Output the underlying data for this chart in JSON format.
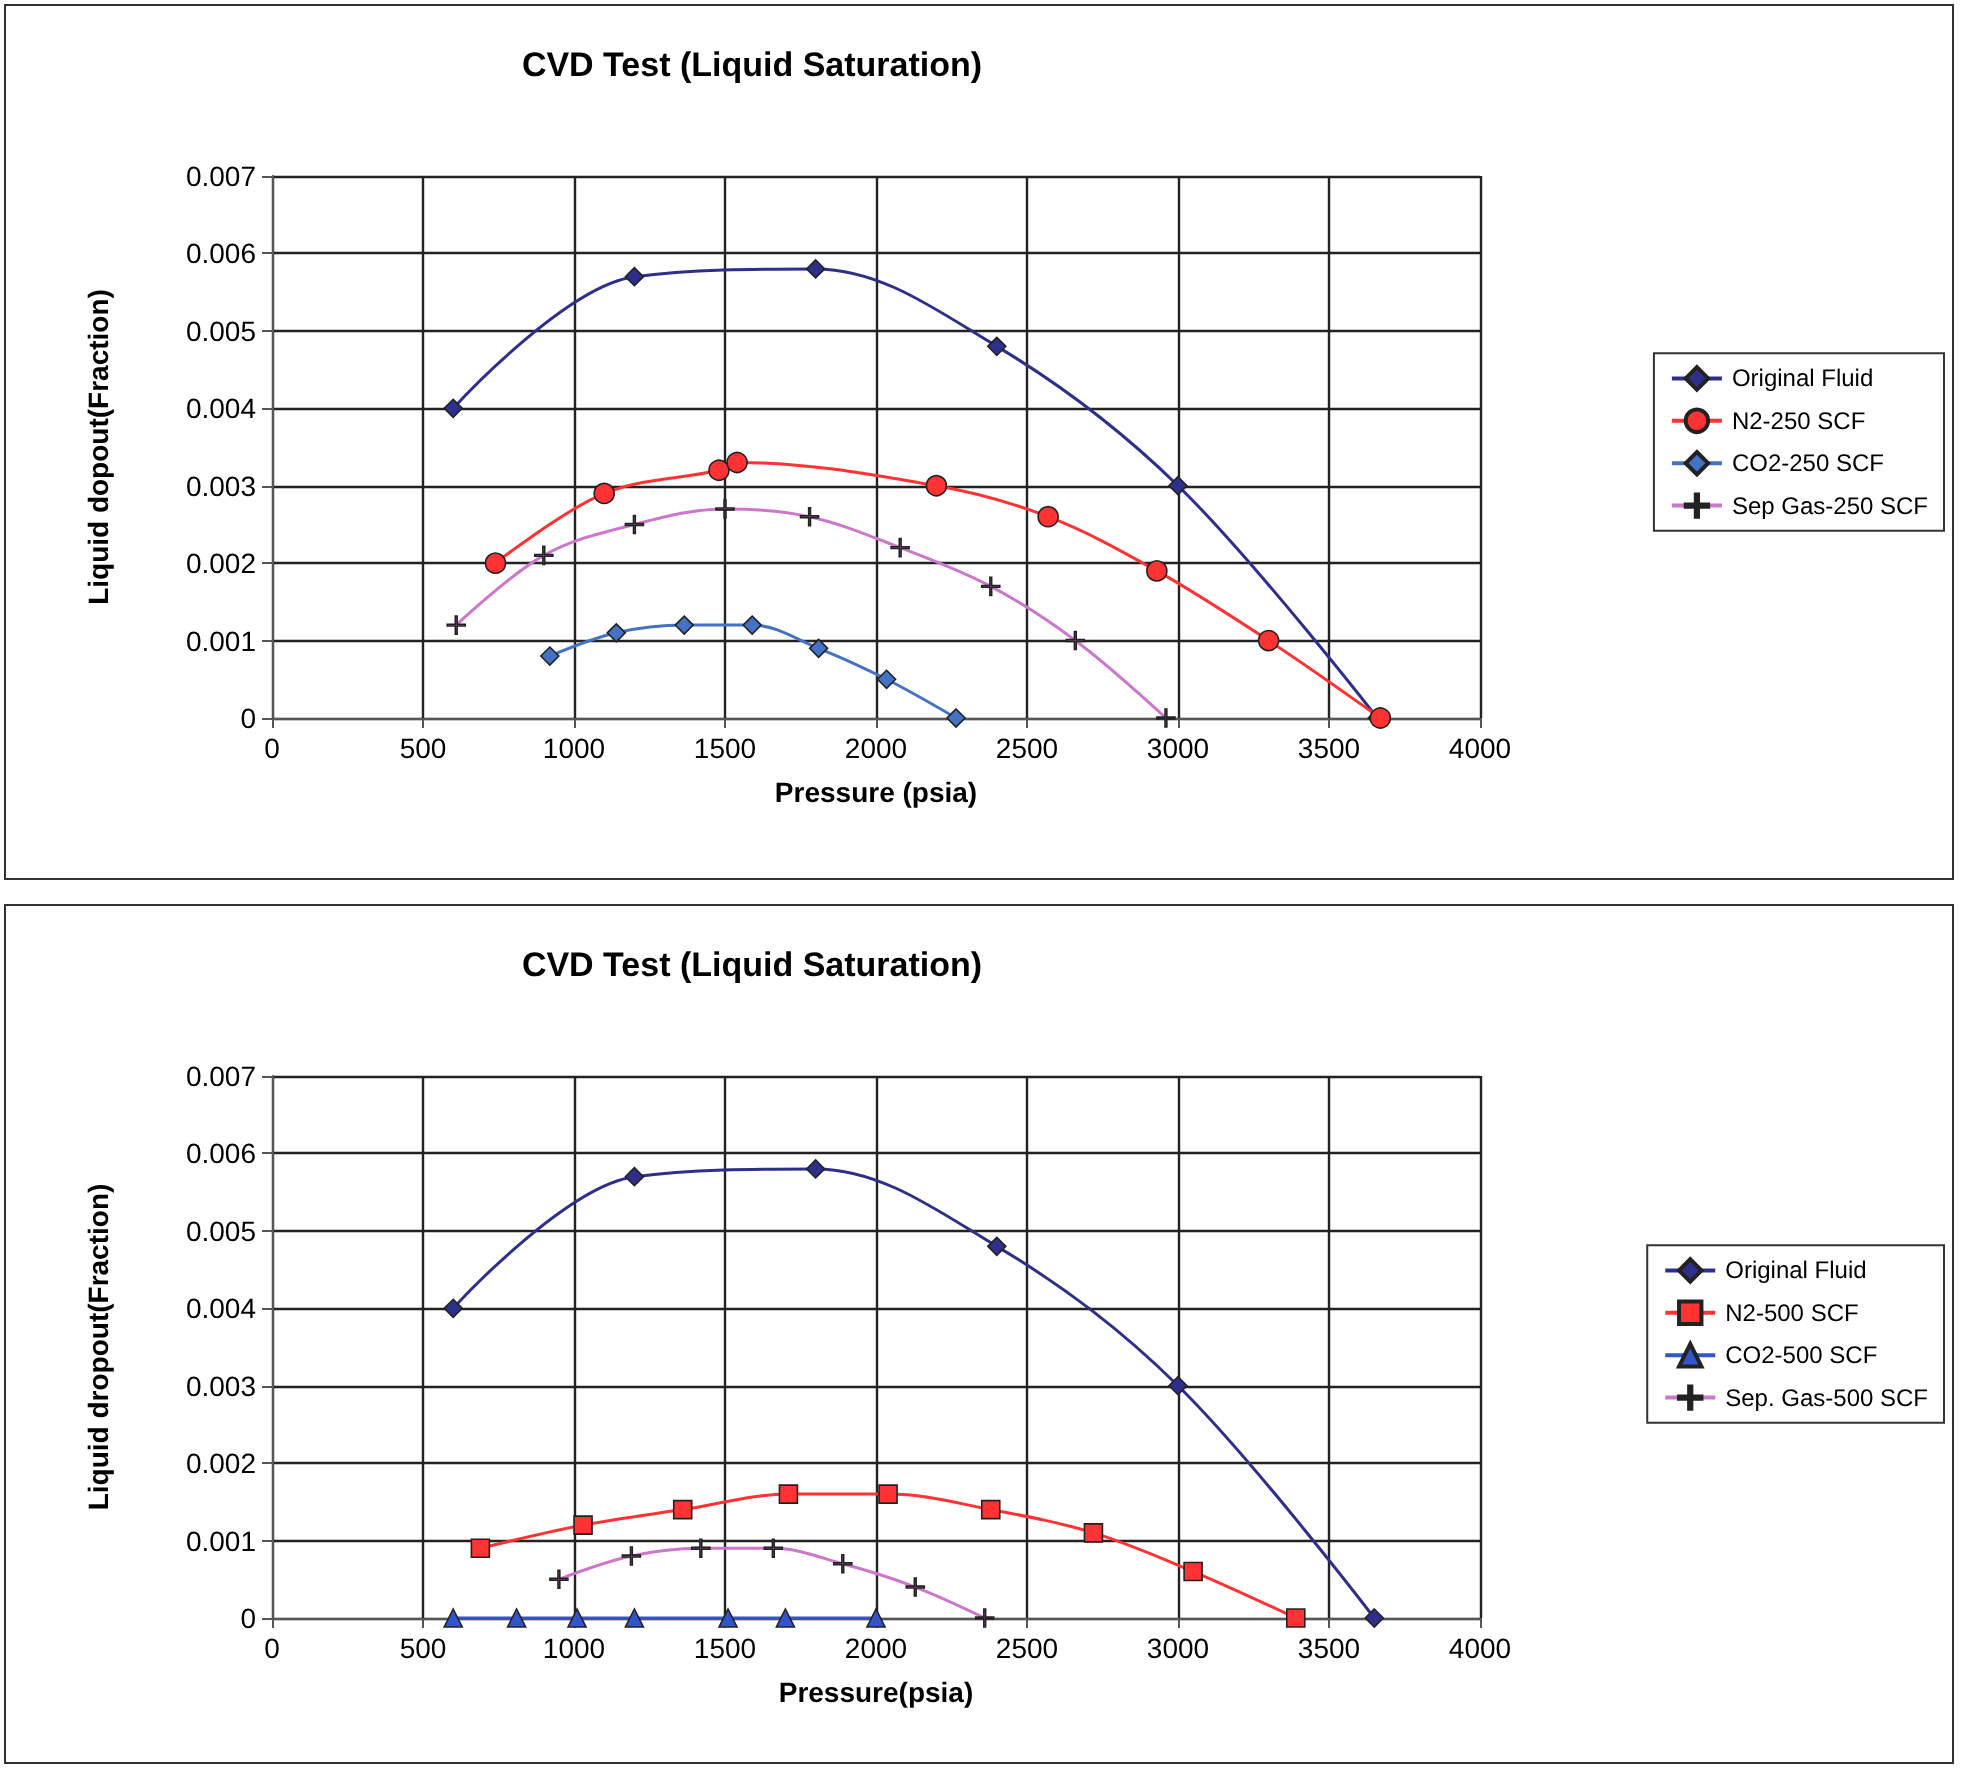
{
  "chart_data": [
    {
      "type": "line",
      "title": "CVD Test (Liquid Saturation)",
      "xlabel": "Pressure (psia)",
      "ylabel": "Liquid dopout(Fraction)",
      "xlim": [
        0,
        4000
      ],
      "xticks": [
        0,
        500,
        1000,
        1500,
        2000,
        2500,
        3000,
        3500,
        4000
      ],
      "ylim": [
        0,
        0.007
      ],
      "yticks": [
        0,
        0.001,
        0.002,
        0.003,
        0.004,
        0.005,
        0.006,
        0.007
      ],
      "grid": true,
      "legend": "right",
      "line_style": "solid",
      "series": [
        {
          "name": "Original Fluid",
          "color": "#2e2f8a",
          "marker": "diamond",
          "x": [
            600,
            1200,
            1800,
            2400,
            3000,
            3660
          ],
          "values": [
            0.004,
            0.0057,
            0.0058,
            0.0048,
            0.003,
            0
          ]
        },
        {
          "name": "N2-250 SCF",
          "color": "#ff3333",
          "marker": "circle",
          "x": [
            740,
            1100,
            1480,
            1540,
            2200,
            2570,
            2930,
            3300,
            3670
          ],
          "values": [
            0.002,
            0.0029,
            0.0032,
            0.0033,
            0.003,
            0.0026,
            0.0019,
            0.001,
            0
          ]
        },
        {
          "name": "CO2-250 SCF",
          "color": "#4472c4",
          "marker": "diamond",
          "x": [
            920,
            1140,
            1365,
            1590,
            1810,
            2035,
            2265
          ],
          "values": [
            0.0008,
            0.0011,
            0.0012,
            0.0012,
            0.0009,
            0.0005,
            0
          ]
        },
        {
          "name": "Sep Gas-250 SCF",
          "color": "#cc77cc",
          "marker": "cross",
          "x": [
            610,
            900,
            1200,
            1500,
            1780,
            2080,
            2380,
            2660,
            2960
          ],
          "values": [
            0.0012,
            0.0021,
            0.0025,
            0.0027,
            0.0026,
            0.0022,
            0.0017,
            0.001,
            0
          ]
        }
      ]
    },
    {
      "type": "line",
      "title": "CVD Test (Liquid Saturation)",
      "xlabel": "Pressure(psia)",
      "ylabel": "Liquid dropout(Fraction)",
      "xlim": [
        0,
        4000
      ],
      "xticks": [
        0,
        500,
        1000,
        1500,
        2000,
        2500,
        3000,
        3500,
        4000
      ],
      "ylim": [
        0,
        0.007
      ],
      "yticks": [
        0,
        0.001,
        0.002,
        0.003,
        0.004,
        0.005,
        0.006,
        0.007
      ],
      "grid": true,
      "legend": "right",
      "line_style": "solid",
      "series": [
        {
          "name": "Original Fluid",
          "color": "#2e2f8a",
          "marker": "diamond",
          "x": [
            600,
            1200,
            1800,
            2400,
            3000,
            3650
          ],
          "values": [
            0.004,
            0.0057,
            0.0058,
            0.0048,
            0.003,
            0
          ]
        },
        {
          "name": "N2-500 SCF",
          "color": "#ff3333",
          "marker": "square",
          "x": [
            690,
            1030,
            1360,
            1710,
            2040,
            2380,
            2720,
            3050,
            3390
          ],
          "values": [
            0.0009,
            0.0012,
            0.0014,
            0.0016,
            0.0016,
            0.0014,
            0.0011,
            0.0006,
            0
          ]
        },
        {
          "name": "CO2-500 SCF",
          "color": "#3355cc",
          "marker": "triangle",
          "x": [
            600,
            810,
            1010,
            1200,
            1510,
            1700,
            2000
          ],
          "values": [
            0,
            0,
            0,
            0,
            0,
            0,
            0
          ]
        },
        {
          "name": "Sep. Gas-500 SCF",
          "color": "#cc77cc",
          "marker": "cross",
          "x": [
            950,
            1190,
            1420,
            1660,
            1890,
            2130,
            2360
          ],
          "values": [
            0.0005,
            0.0008,
            0.0009,
            0.0009,
            0.0007,
            0.0004,
            0
          ]
        }
      ]
    }
  ]
}
